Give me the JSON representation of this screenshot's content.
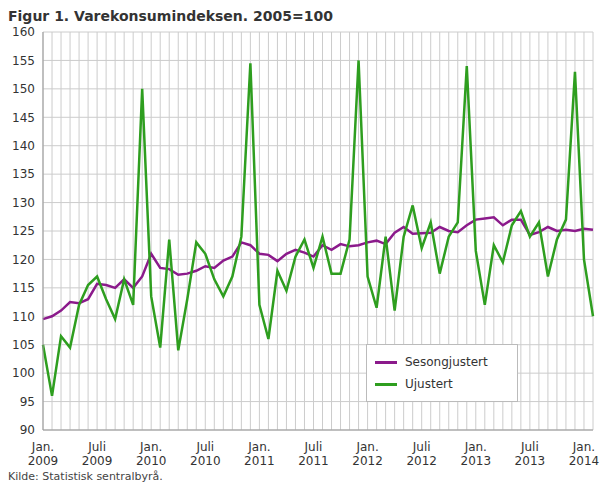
{
  "chart_data": {
    "type": "line",
    "title": "Figur 1. Varekonsumindeksen. 2005=100",
    "source": "Kilde: Statistisk sentralbyrå.",
    "categories": [
      "Jan. 2009",
      null,
      null,
      null,
      null,
      null,
      "Juli 2009",
      null,
      null,
      null,
      null,
      null,
      "Jan. 2010",
      null,
      null,
      null,
      null,
      null,
      "Juli 2010",
      null,
      null,
      null,
      null,
      null,
      "Jan. 2011",
      null,
      null,
      null,
      null,
      null,
      "Juli 2011",
      null,
      null,
      null,
      null,
      null,
      "Jan. 2012",
      null,
      null,
      null,
      null,
      null,
      "Juli 2012",
      null,
      null,
      null,
      null,
      null,
      "Jan. 2013",
      null,
      null,
      null,
      null,
      null,
      "Juli 2013",
      null,
      null,
      null,
      null,
      null,
      "Jan. 2014",
      null
    ],
    "series": [
      {
        "name": "Sesongjustert",
        "color": "#8b1a8b",
        "values": [
          109.5,
          110,
          111,
          112.5,
          112.3,
          113,
          115.7,
          115.5,
          115,
          116.5,
          115,
          117,
          121,
          118.5,
          118.3,
          117.3,
          117.5,
          118,
          118.8,
          118.5,
          119.8,
          120.5,
          123,
          122.5,
          121,
          120.8,
          119.7,
          121,
          121.7,
          121.2,
          120.5,
          122.5,
          121.7,
          122.7,
          122.3,
          122.5,
          123,
          123.3,
          122.7,
          124.7,
          125.7,
          124.5,
          124.6,
          124.7,
          125.7,
          125,
          124.8,
          126,
          127,
          127.2,
          127.4,
          126,
          127,
          127,
          124.3,
          124.8,
          125.7,
          125,
          125.2,
          125,
          125.4,
          125.2
        ]
      },
      {
        "name": "Ujustert",
        "color": "#2e9e1f",
        "values": [
          105,
          96,
          106.5,
          104.5,
          112,
          115.5,
          117,
          113,
          109.5,
          116.5,
          112,
          150,
          113.5,
          104.5,
          123.5,
          104,
          113,
          123,
          121,
          116.5,
          113.5,
          117,
          124,
          154.5,
          112,
          106,
          118,
          114.5,
          120.5,
          123.5,
          118.5,
          124,
          117.5,
          117.5,
          123.5,
          155,
          117,
          111.5,
          124,
          111,
          124,
          129.5,
          122,
          126.5,
          117.5,
          124,
          126.5,
          154,
          121.5,
          112,
          122.5,
          119.5,
          126,
          128.5,
          124,
          126.5,
          117,
          123.5,
          127,
          153,
          120,
          110
        ]
      }
    ],
    "ylim": [
      90,
      160
    ],
    "yticks": [
      90,
      95,
      100,
      105,
      110,
      115,
      120,
      125,
      130,
      135,
      140,
      145,
      150,
      155,
      160
    ],
    "grid": true,
    "legend": "lower right",
    "marker": "none"
  }
}
